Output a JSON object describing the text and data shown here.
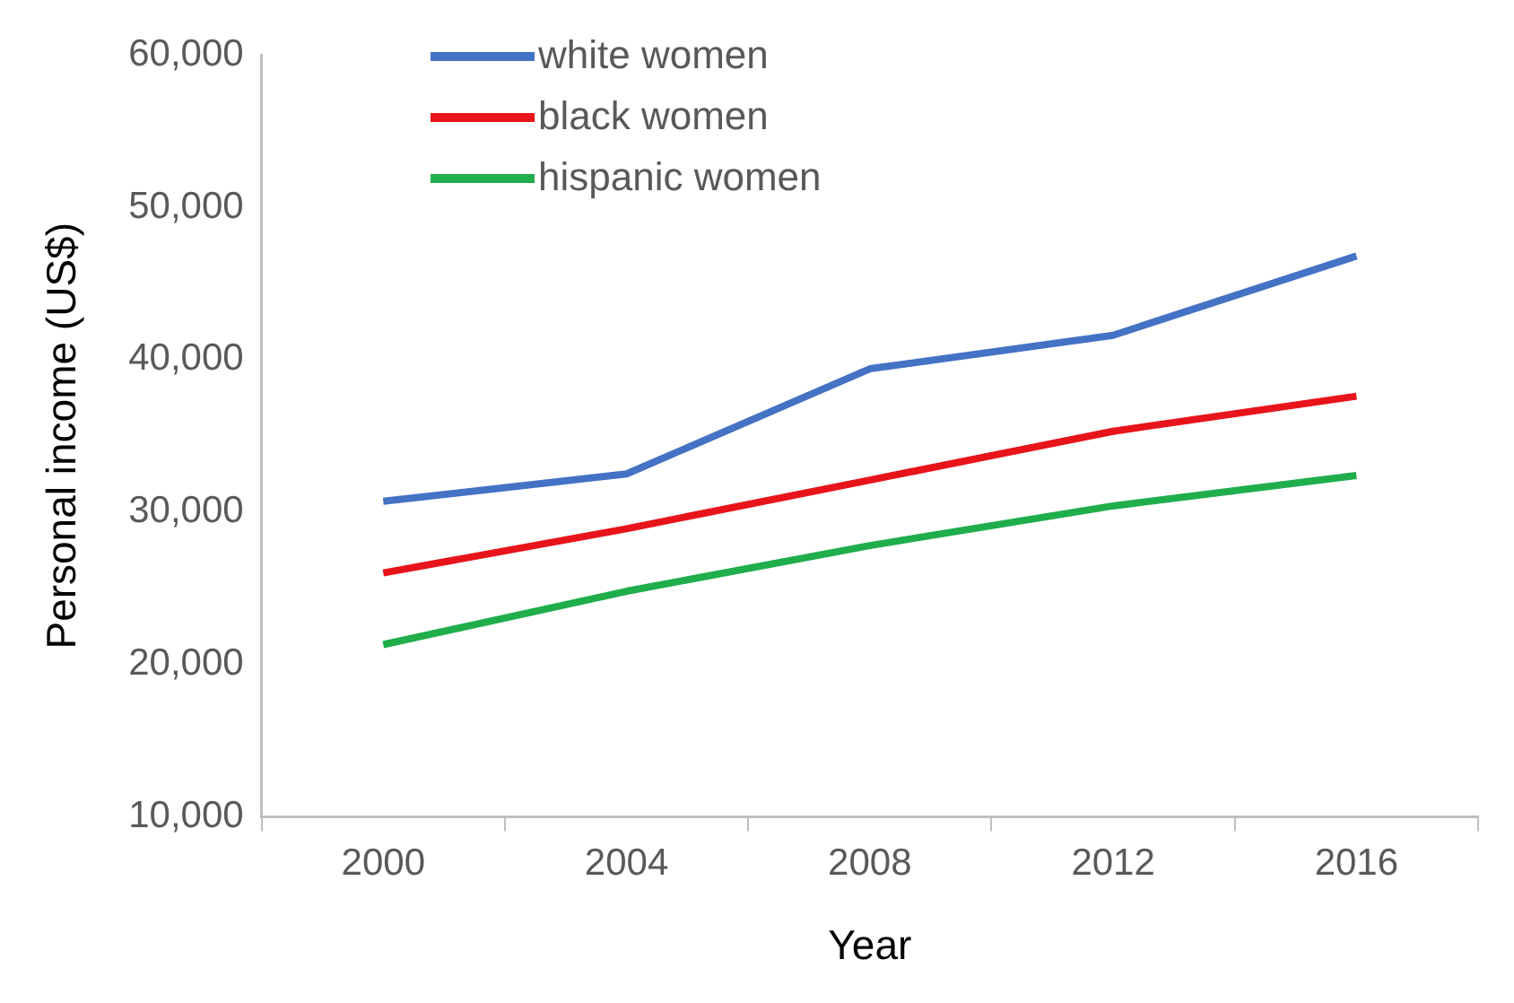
{
  "chart_data": {
    "type": "line",
    "xlabel": "Year",
    "ylabel": "Personal income (US$)",
    "categories": [
      "2000",
      "2004",
      "2008",
      "2012",
      "2016"
    ],
    "series": [
      {
        "name": "white women",
        "color": "#4472c4",
        "values": [
          30700,
          32500,
          39400,
          41600,
          46800
        ]
      },
      {
        "name": "black women",
        "color": "#e8141b",
        "values": [
          26000,
          28900,
          32100,
          35300,
          37600
        ]
      },
      {
        "name": "hispanic women",
        "color": "#1fae4b",
        "values": [
          21300,
          24800,
          27800,
          30400,
          32400
        ]
      }
    ],
    "ylim": [
      10000,
      60000
    ],
    "yticks": [
      {
        "value": 10000,
        "label": "10,000"
      },
      {
        "value": 20000,
        "label": "20,000"
      },
      {
        "value": 30000,
        "label": "30,000"
      },
      {
        "value": 40000,
        "label": "40,000"
      },
      {
        "value": 50000,
        "label": "50,000"
      },
      {
        "value": 60000,
        "label": "60,000"
      }
    ],
    "grid": false,
    "legend": "top left",
    "marker": "none",
    "line_style": "solid"
  }
}
